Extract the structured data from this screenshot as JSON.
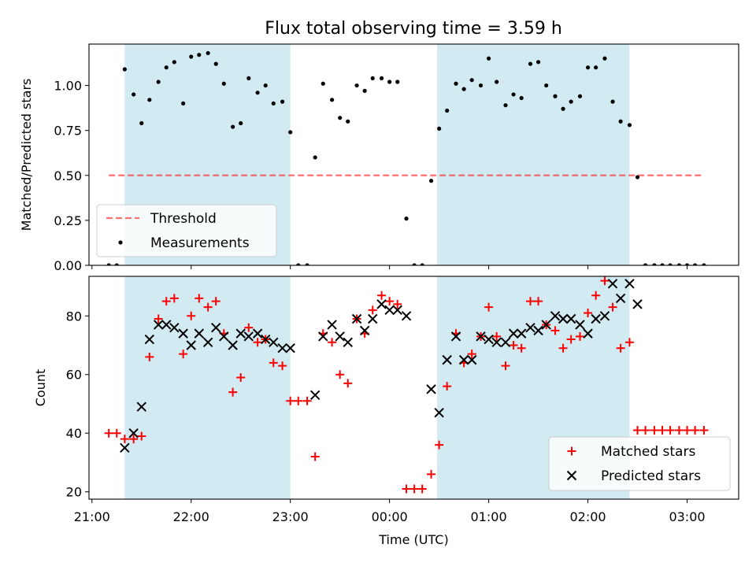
{
  "title": "Flux total observing time = 3.59 h",
  "colors": {
    "band": "#add8e6",
    "threshold": "#ff0000",
    "matched": "#ff0000",
    "predicted": "#000000",
    "measurement": "#000000"
  },
  "chart_data": [
    {
      "type": "scatter",
      "panel": "top",
      "ylabel": "Matched/Predicted stars",
      "ylim": [
        0,
        1.23
      ],
      "yticks": [
        "0.00",
        "0.25",
        "0.50",
        "0.75",
        "1.00"
      ],
      "ytick_values": [
        0,
        0.25,
        0.5,
        0.75,
        1.0
      ],
      "xlim_hours": [
        20.97,
        27.52
      ],
      "x_tick_hours": [
        21,
        22,
        23,
        24,
        25,
        26,
        27
      ],
      "x_tick_labels": [
        "21:00",
        "22:00",
        "23:00",
        "00:00",
        "01:00",
        "02:00",
        "03:00"
      ],
      "x_tick_labels_shown": false,
      "shaded_intervals_hours": [
        [
          21.33,
          23.0
        ],
        [
          24.48,
          26.42
        ]
      ],
      "threshold": {
        "value": 0.5,
        "x_range_hours": [
          21.17,
          27.17
        ],
        "name": "Threshold"
      },
      "legend": {
        "placement": "lower-left",
        "entries": [
          "Threshold",
          "Measurements"
        ]
      },
      "series": [
        {
          "name": "Measurements",
          "marker": "dot",
          "x_hours": [
            21.17,
            21.25,
            21.33,
            21.42,
            21.5,
            21.58,
            21.67,
            21.75,
            21.83,
            21.92,
            22.0,
            22.08,
            22.17,
            22.25,
            22.33,
            22.42,
            22.5,
            22.58,
            22.67,
            22.75,
            22.83,
            22.92,
            23.0,
            23.08,
            23.17,
            23.25,
            23.33,
            23.42,
            23.5,
            23.58,
            23.67,
            23.75,
            23.83,
            23.92,
            24.0,
            24.08,
            24.17,
            24.25,
            24.33,
            24.42,
            24.5,
            24.58,
            24.67,
            24.75,
            24.83,
            24.92,
            25.0,
            25.08,
            25.17,
            25.25,
            25.33,
            25.42,
            25.5,
            25.58,
            25.67,
            25.75,
            25.83,
            25.92,
            26.0,
            26.08,
            26.17,
            26.25,
            26.33,
            26.42,
            26.5,
            26.58,
            26.67,
            26.75,
            26.83,
            26.92,
            27.0,
            27.08,
            27.17
          ],
          "y": [
            0.0,
            0.0,
            1.09,
            0.95,
            0.79,
            0.92,
            1.02,
            1.1,
            1.13,
            0.9,
            1.16,
            1.17,
            1.18,
            1.12,
            1.01,
            0.77,
            0.79,
            1.04,
            0.96,
            1.0,
            0.9,
            0.91,
            0.74,
            0.0,
            0.0,
            0.6,
            1.01,
            0.92,
            0.82,
            0.8,
            1.0,
            0.97,
            1.04,
            1.04,
            1.02,
            1.02,
            0.26,
            0.0,
            0.0,
            0.47,
            0.76,
            0.86,
            1.01,
            0.98,
            1.03,
            1.0,
            1.15,
            1.02,
            0.89,
            0.95,
            0.93,
            1.12,
            1.13,
            1.0,
            0.94,
            0.87,
            0.91,
            0.94,
            1.1,
            1.1,
            1.15,
            0.91,
            0.8,
            0.78,
            0.49,
            0.0,
            0.0,
            0.0,
            0.0,
            0.0,
            0.0,
            0.0,
            0.0
          ]
        }
      ]
    },
    {
      "type": "scatter",
      "panel": "bottom",
      "xlabel": "Time (UTC)",
      "ylabel": "Count",
      "ylim": [
        17.5,
        93.5
      ],
      "yticks": [
        "20",
        "40",
        "60",
        "80"
      ],
      "ytick_values": [
        20,
        40,
        60,
        80
      ],
      "xlim_hours": [
        20.97,
        27.52
      ],
      "x_tick_hours": [
        21,
        22,
        23,
        24,
        25,
        26,
        27
      ],
      "x_tick_labels": [
        "21:00",
        "22:00",
        "23:00",
        "00:00",
        "01:00",
        "02:00",
        "03:00"
      ],
      "shaded_intervals_hours": [
        [
          21.33,
          23.0
        ],
        [
          24.48,
          26.42
        ]
      ],
      "legend": {
        "placement": "lower-right",
        "entries": [
          "Matched stars",
          "Predicted stars"
        ]
      },
      "series": [
        {
          "name": "Matched stars",
          "marker": "plus",
          "x_hours": [
            21.17,
            21.25,
            21.33,
            21.42,
            21.5,
            21.58,
            21.67,
            21.75,
            21.83,
            21.92,
            22.0,
            22.08,
            22.17,
            22.25,
            22.33,
            22.42,
            22.5,
            22.58,
            22.67,
            22.75,
            22.83,
            22.92,
            23.0,
            23.08,
            23.17,
            23.25,
            23.33,
            23.42,
            23.5,
            23.58,
            23.67,
            23.75,
            23.83,
            23.92,
            24.0,
            24.08,
            24.17,
            24.25,
            24.33,
            24.42,
            24.5,
            24.58,
            24.67,
            24.75,
            24.83,
            24.92,
            25.0,
            25.08,
            25.17,
            25.25,
            25.33,
            25.42,
            25.5,
            25.58,
            25.67,
            25.75,
            25.83,
            25.92,
            26.0,
            26.08,
            26.17,
            26.25,
            26.33,
            26.42,
            26.5,
            26.58,
            26.67,
            26.75,
            26.83,
            26.92,
            27.0,
            27.08,
            27.17
          ],
          "y": [
            40,
            40,
            38,
            38,
            39,
            66,
            79,
            85,
            86,
            67,
            80,
            86,
            83,
            85,
            74,
            54,
            59,
            76,
            71,
            72,
            64,
            63,
            51,
            51,
            51,
            32,
            74,
            71,
            60,
            57,
            79,
            74,
            82,
            87,
            85,
            84,
            21,
            21,
            21,
            26,
            36,
            56,
            74,
            64,
            67,
            73,
            83,
            73,
            63,
            70,
            69,
            85,
            85,
            77,
            75,
            69,
            72,
            73,
            81,
            87,
            92,
            83,
            69,
            71,
            41,
            41,
            41,
            41,
            41,
            41,
            41,
            41,
            41
          ]
        },
        {
          "name": "Predicted stars",
          "marker": "x",
          "x_hours": [
            21.33,
            21.42,
            21.5,
            21.58,
            21.67,
            21.75,
            21.83,
            21.92,
            22.0,
            22.08,
            22.17,
            22.25,
            22.33,
            22.42,
            22.5,
            22.58,
            22.67,
            22.75,
            22.83,
            22.92,
            23.0,
            23.25,
            23.33,
            23.42,
            23.5,
            23.58,
            23.67,
            23.75,
            23.83,
            23.92,
            24.0,
            24.08,
            24.17,
            24.42,
            24.5,
            24.58,
            24.67,
            24.75,
            24.83,
            24.92,
            25.0,
            25.08,
            25.17,
            25.25,
            25.33,
            25.42,
            25.5,
            25.58,
            25.67,
            25.75,
            25.83,
            25.92,
            26.0,
            26.08,
            26.17,
            26.25,
            26.33,
            26.42,
            26.5
          ],
          "y": [
            35,
            40,
            49,
            72,
            77,
            77,
            76,
            74,
            70,
            74,
            71,
            76,
            73,
            70,
            74,
            73,
            74,
            72,
            71,
            69,
            69,
            53,
            73,
            77,
            73,
            71,
            79,
            75,
            79,
            84,
            82,
            82,
            80,
            55,
            47,
            65,
            73,
            65,
            65,
            73,
            72,
            71,
            71,
            74,
            74,
            76,
            75,
            77,
            80,
            79,
            79,
            77,
            74,
            79,
            80,
            91,
            86,
            91,
            84
          ]
        }
      ]
    }
  ]
}
